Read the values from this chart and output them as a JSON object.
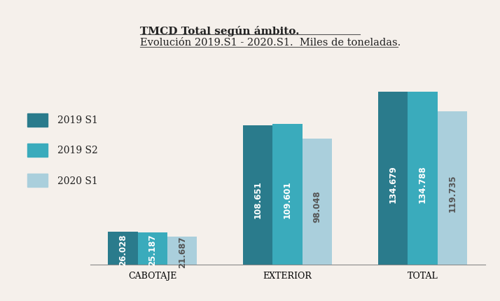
{
  "categories": [
    "CABOTAJE",
    "EXTERIOR",
    "TOTAL"
  ],
  "series": [
    {
      "label": "2019 S1",
      "values": [
        26.028,
        108.651,
        134.679
      ],
      "color": "#2a7b8c"
    },
    {
      "label": "2019 S2",
      "values": [
        25.187,
        109.601,
        134.788
      ],
      "color": "#3aabbc"
    },
    {
      "label": "2020 S1",
      "values": [
        21.687,
        98.048,
        119.735
      ],
      "color": "#aacfdc"
    }
  ],
  "title_line2": "Evolucion 2019.S1 - 2020.S1.  Miles de toneladas.",
  "ylim": [
    0,
    155
  ],
  "bar_width": 0.22,
  "background_color": "#f5f0eb",
  "font_size_bar_label": 8.5,
  "font_size_title": 11,
  "font_size_axis": 9,
  "font_size_legend": 10
}
